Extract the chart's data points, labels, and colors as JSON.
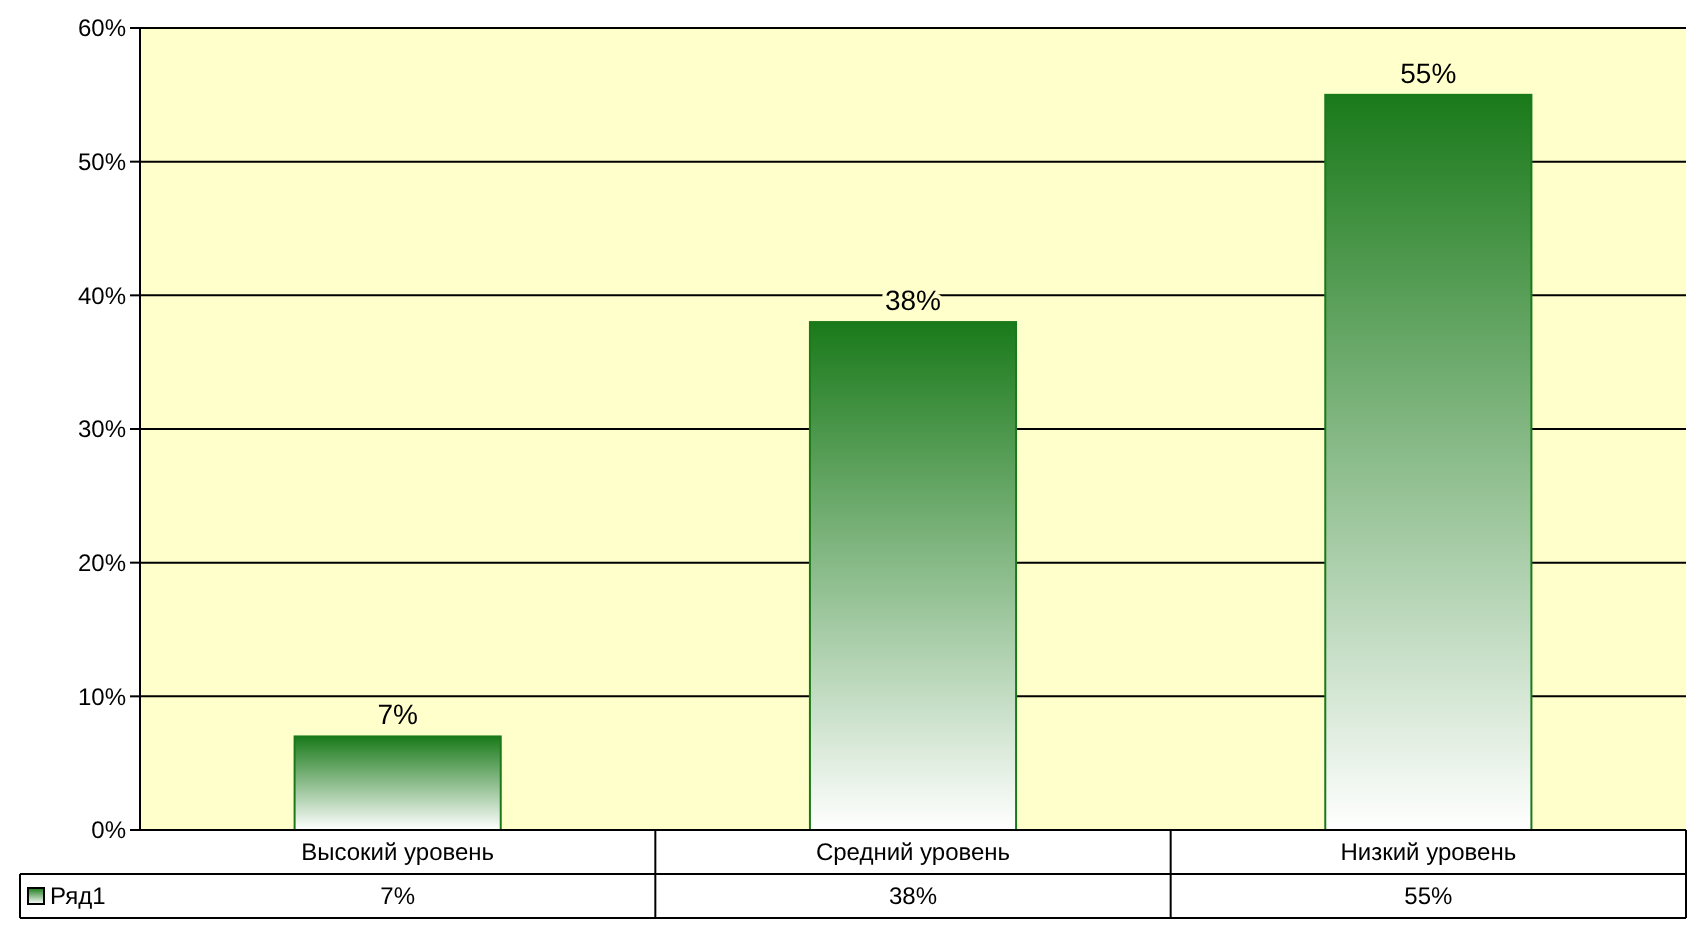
{
  "chart_data": {
    "type": "bar",
    "categories": [
      "Высокий уровень",
      "Средний уровень",
      "Низкий уровень"
    ],
    "series": [
      {
        "name": "Ряд1",
        "color": "#1a7a1a",
        "values": [
          7,
          38,
          55
        ],
        "value_labels": [
          "7%",
          "38%",
          "55%"
        ]
      }
    ],
    "ylim": [
      0,
      60
    ],
    "yticks": [
      {
        "value": 0,
        "label": "0%"
      },
      {
        "value": 10,
        "label": "10%"
      },
      {
        "value": 20,
        "label": "20%"
      },
      {
        "value": 30,
        "label": "30%"
      },
      {
        "value": 40,
        "label": "40%"
      },
      {
        "value": 50,
        "label": "50%"
      },
      {
        "value": 60,
        "label": "60%"
      }
    ],
    "grid": "y",
    "legend": "bottom"
  }
}
